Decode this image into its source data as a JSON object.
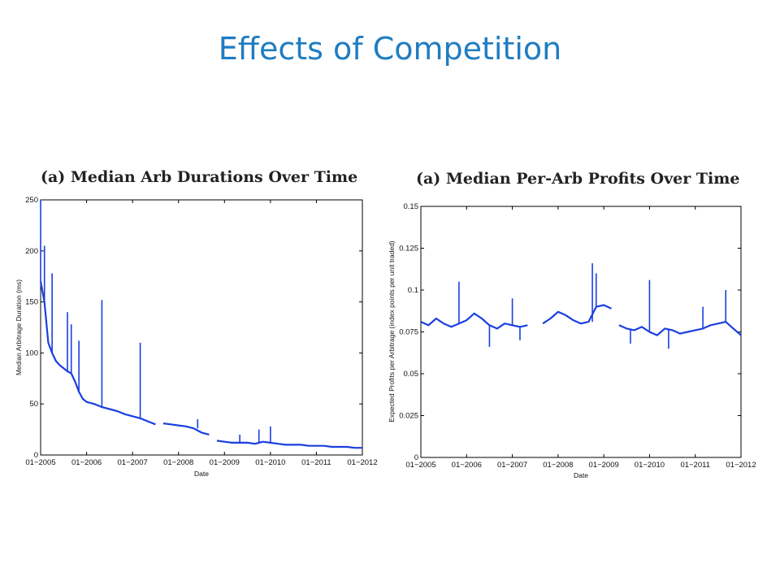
{
  "slide": {
    "title": "Effects of Competition"
  },
  "chart_data": [
    {
      "type": "line",
      "title": "(a) Median Arb Durations Over Time",
      "xlabel": "Date",
      "ylabel": "Median Arbitrage Duration (ms)",
      "xlim": [
        "2005-01",
        "2012-01"
      ],
      "ylim": [
        0,
        250
      ],
      "xticks": [
        "01−2005",
        "01−2006",
        "01−2007",
        "01−2008",
        "01−2009",
        "01−2010",
        "01−2011",
        "01−2012"
      ],
      "yticks": [
        "0",
        "50",
        "100",
        "150",
        "200",
        "250"
      ],
      "ytick_values": [
        0,
        50,
        100,
        150,
        200,
        250
      ],
      "grid": false,
      "line_color": "#1a3fe0",
      "series": [
        {
          "segments": [
            {
              "x": [
                "2005-01",
                "2005-02",
                "2005-03",
                "2005-04",
                "2005-05",
                "2005-06",
                "2005-07",
                "2005-08",
                "2005-09",
                "2005-10",
                "2005-11",
                "2005-12",
                "2006-01",
                "2006-03",
                "2006-05",
                "2006-07",
                "2006-09",
                "2006-11",
                "2007-01",
                "2007-03",
                "2007-05",
                "2007-07"
              ],
              "y": [
                170,
                150,
                110,
                100,
                92,
                88,
                85,
                82,
                80,
                72,
                62,
                55,
                52,
                50,
                47,
                45,
                43,
                40,
                38,
                36,
                33,
                30
              ]
            },
            {
              "x": [
                "2007-09",
                "2007-11",
                "2008-01",
                "2008-03",
                "2008-05",
                "2008-07",
                "2008-09"
              ],
              "y": [
                31,
                30,
                29,
                28,
                26,
                22,
                20
              ]
            },
            {
              "x": [
                "2008-11",
                "2009-01",
                "2009-03",
                "2009-05",
                "2009-07",
                "2009-09",
                "2009-11",
                "2010-01",
                "2010-03",
                "2010-05",
                "2010-07",
                "2010-09",
                "2010-11",
                "2011-01",
                "2011-03",
                "2011-05",
                "2011-07",
                "2011-09",
                "2011-11",
                "2012-01"
              ],
              "y": [
                14,
                13,
                12,
                12,
                12,
                11,
                13,
                12,
                11,
                10,
                10,
                10,
                9,
                9,
                9,
                8,
                8,
                8,
                7,
                7
              ]
            }
          ],
          "spikes": [
            {
              "x": "2005-01",
              "y": 250
            },
            {
              "x": "2005-02",
              "y": 205
            },
            {
              "x": "2005-04",
              "y": 178
            },
            {
              "x": "2005-08",
              "y": 140
            },
            {
              "x": "2005-09",
              "y": 128
            },
            {
              "x": "2005-11",
              "y": 112
            },
            {
              "x": "2006-05",
              "y": 152
            },
            {
              "x": "2007-03",
              "y": 110
            },
            {
              "x": "2008-06",
              "y": 35
            },
            {
              "x": "2009-05",
              "y": 20
            },
            {
              "x": "2009-10",
              "y": 25
            },
            {
              "x": "2010-01",
              "y": 28
            }
          ]
        }
      ]
    },
    {
      "type": "line",
      "title": "(a) Median Per-Arb Profits Over Time",
      "xlabel": "Date",
      "ylabel": "Expected Profits per Arbitrage (index points per unit traded)",
      "xlim": [
        "2005-01",
        "2012-01"
      ],
      "ylim": [
        0,
        0.15
      ],
      "xticks": [
        "01−2005",
        "01−2006",
        "01−2007",
        "01−2008",
        "01−2009",
        "01−2010",
        "01−2011",
        "01−2012"
      ],
      "yticks": [
        "0",
        "0.025",
        "0.05",
        "0.075",
        "0.1",
        "0.125",
        "0.15"
      ],
      "ytick_values": [
        0,
        0.025,
        0.05,
        0.075,
        0.1,
        0.125,
        0.15
      ],
      "grid": false,
      "line_color": "#1a3fe0",
      "series": [
        {
          "segments": [
            {
              "x": [
                "2005-01",
                "2005-03",
                "2005-05",
                "2005-07",
                "2005-09",
                "2005-11",
                "2006-01",
                "2006-03",
                "2006-05",
                "2006-07",
                "2006-09",
                "2006-11",
                "2007-01",
                "2007-03",
                "2007-05"
              ],
              "y": [
                0.081,
                0.079,
                0.083,
                0.08,
                0.078,
                0.08,
                0.082,
                0.086,
                0.083,
                0.079,
                0.077,
                0.08,
                0.079,
                0.078,
                0.079
              ]
            },
            {
              "x": [
                "2007-09",
                "2007-11",
                "2008-01",
                "2008-03",
                "2008-05",
                "2008-07",
                "2008-09",
                "2008-11",
                "2009-01",
                "2009-03"
              ],
              "y": [
                0.08,
                0.083,
                0.087,
                0.085,
                0.082,
                0.08,
                0.081,
                0.09,
                0.091,
                0.089
              ]
            },
            {
              "x": [
                "2009-05",
                "2009-07",
                "2009-09",
                "2009-11",
                "2010-01",
                "2010-03",
                "2010-05",
                "2010-07",
                "2010-09",
                "2010-11",
                "2011-01",
                "2011-03",
                "2011-05",
                "2011-07",
                "2011-09",
                "2011-11",
                "2012-01"
              ],
              "y": [
                0.079,
                0.077,
                0.076,
                0.078,
                0.075,
                0.073,
                0.077,
                0.076,
                0.074,
                0.075,
                0.076,
                0.077,
                0.079,
                0.08,
                0.081,
                0.077,
                0.073
              ]
            }
          ],
          "spikes": [
            {
              "x": "2005-11",
              "y": 0.105
            },
            {
              "x": "2006-07",
              "y": 0.066
            },
            {
              "x": "2007-01",
              "y": 0.095
            },
            {
              "x": "2007-03",
              "y": 0.07
            },
            {
              "x": "2008-10",
              "y": 0.116
            },
            {
              "x": "2008-11",
              "y": 0.11
            },
            {
              "x": "2009-08",
              "y": 0.068
            },
            {
              "x": "2010-01",
              "y": 0.106
            },
            {
              "x": "2010-06",
              "y": 0.065
            },
            {
              "x": "2011-03",
              "y": 0.09
            },
            {
              "x": "2011-09",
              "y": 0.1
            }
          ]
        }
      ]
    }
  ]
}
